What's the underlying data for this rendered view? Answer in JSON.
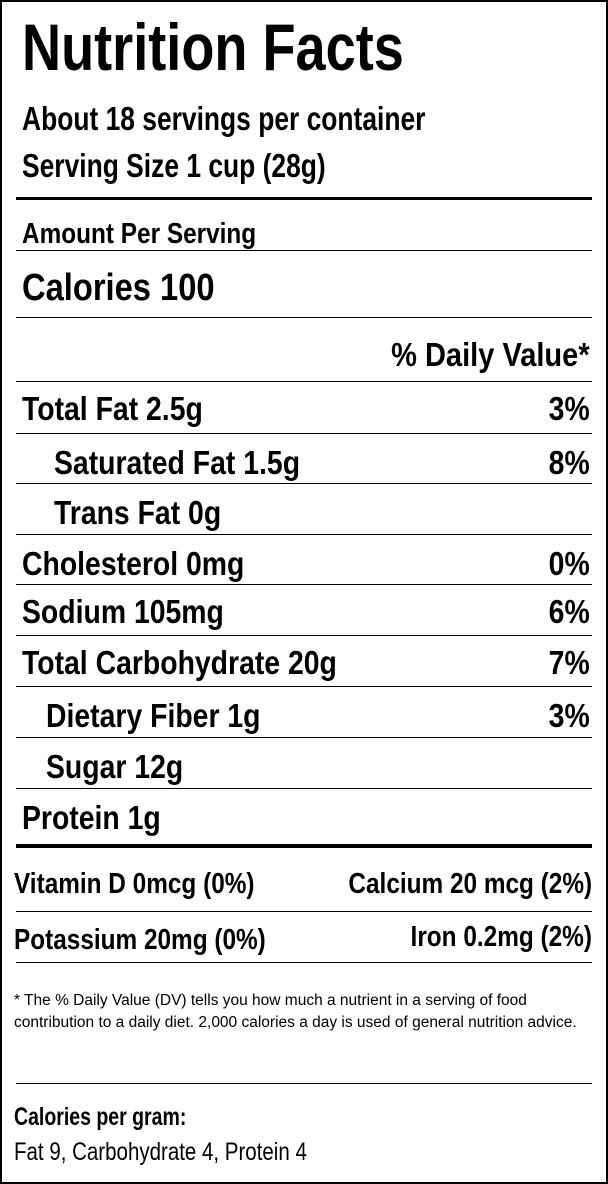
{
  "title": "Nutrition Facts",
  "servings_per_container": "About 18  servings per container",
  "serving_size": "Serving Size 1 cup (28g)",
  "amount_per_serving": "Amount Per Serving",
  "calories": "Calories 100",
  "daily_value_header": "% Daily Value*",
  "nutrients": [
    {
      "label": "Total Fat 2.5g",
      "dv": "3%",
      "indent": false
    },
    {
      "label": "Saturated Fat 1.5g",
      "dv": "8%",
      "indent": true
    },
    {
      "label": "Trans Fat 0g",
      "dv": "",
      "indent": true
    },
    {
      "label": "Cholesterol 0mg",
      "dv": "0%",
      "indent": false
    },
    {
      "label": "Sodium 105mg",
      "dv": "6%",
      "indent": false
    },
    {
      "label": "Total Carbohydrate 20g",
      "dv": "7%",
      "indent": false
    },
    {
      "label": "Dietary Fiber 1g",
      "dv": "3%",
      "indent": true
    },
    {
      "label": "Sugar 12g",
      "dv": "",
      "indent": true
    },
    {
      "label": "Protein 1g",
      "dv": "",
      "indent": false
    }
  ],
  "vitamins": {
    "vitamin_d": "Vitamin D 0mcg (0%)",
    "calcium": "Calcium 20 mcg (2%)",
    "potassium": "Potassium 20mg (0%)",
    "iron": "Iron 0.2mg  (2%)"
  },
  "footnote": "* The % Daily Value (DV) tells you how much a nutrient in a serving of food contribution to a daily diet. 2,000 calories a day is used of general nutrition advice.",
  "calories_per_gram": {
    "title": "Calories per gram:",
    "values": "Fat 9, Carbohydrate 4, Protein 4"
  }
}
